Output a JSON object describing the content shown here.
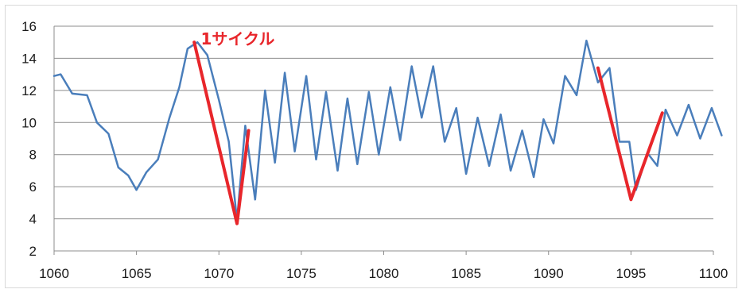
{
  "chart_data": {
    "type": "line",
    "title": "",
    "xlabel": "",
    "ylabel": "",
    "xlim": [
      1060,
      1100
    ],
    "ylim": [
      2,
      16
    ],
    "x_ticks": [
      1060,
      1065,
      1070,
      1075,
      1080,
      1085,
      1090,
      1095,
      1100
    ],
    "y_ticks": [
      2,
      4,
      6,
      8,
      10,
      12,
      14,
      16
    ],
    "grid": "horizontal",
    "legend": "none",
    "series": [
      {
        "color": "#4a7ebb",
        "points": [
          [
            1060.0,
            12.9
          ],
          [
            1060.4,
            13.0
          ],
          [
            1061.1,
            11.8
          ],
          [
            1062.0,
            11.7
          ],
          [
            1062.6,
            10.0
          ],
          [
            1063.3,
            9.3
          ],
          [
            1063.9,
            7.2
          ],
          [
            1064.5,
            6.7
          ],
          [
            1065.0,
            5.8
          ],
          [
            1065.6,
            6.9
          ],
          [
            1066.3,
            7.7
          ],
          [
            1067.0,
            10.3
          ],
          [
            1067.6,
            12.2
          ],
          [
            1068.1,
            14.6
          ],
          [
            1068.7,
            15.0
          ],
          [
            1069.3,
            14.2
          ],
          [
            1070.0,
            11.4
          ],
          [
            1070.6,
            8.8
          ],
          [
            1071.1,
            3.9
          ],
          [
            1071.6,
            9.8
          ],
          [
            1072.2,
            5.2
          ],
          [
            1072.8,
            12.0
          ],
          [
            1073.4,
            7.5
          ],
          [
            1074.0,
            13.1
          ],
          [
            1074.6,
            8.2
          ],
          [
            1075.3,
            12.9
          ],
          [
            1075.9,
            7.7
          ],
          [
            1076.5,
            11.9
          ],
          [
            1077.2,
            7.0
          ],
          [
            1077.8,
            11.5
          ],
          [
            1078.4,
            7.4
          ],
          [
            1079.1,
            11.9
          ],
          [
            1079.7,
            8.0
          ],
          [
            1080.4,
            12.2
          ],
          [
            1081.0,
            8.9
          ],
          [
            1081.7,
            13.5
          ],
          [
            1082.3,
            10.3
          ],
          [
            1083.0,
            13.5
          ],
          [
            1083.7,
            8.8
          ],
          [
            1084.4,
            10.9
          ],
          [
            1085.0,
            6.8
          ],
          [
            1085.7,
            10.3
          ],
          [
            1086.4,
            7.3
          ],
          [
            1087.1,
            10.5
          ],
          [
            1087.7,
            7.0
          ],
          [
            1088.4,
            9.5
          ],
          [
            1089.1,
            6.6
          ],
          [
            1089.7,
            10.2
          ],
          [
            1090.3,
            8.7
          ],
          [
            1091.0,
            12.9
          ],
          [
            1091.7,
            11.7
          ],
          [
            1092.3,
            15.1
          ],
          [
            1093.0,
            12.5
          ],
          [
            1093.7,
            13.4
          ],
          [
            1094.3,
            8.8
          ],
          [
            1094.9,
            8.8
          ],
          [
            1095.3,
            5.8
          ],
          [
            1096.0,
            8.1
          ],
          [
            1096.6,
            7.3
          ],
          [
            1097.1,
            10.8
          ],
          [
            1097.8,
            9.2
          ],
          [
            1098.5,
            11.1
          ],
          [
            1099.2,
            9.0
          ],
          [
            1099.9,
            10.9
          ],
          [
            1100.5,
            9.2
          ]
        ]
      },
      {
        "color": "#e8262b",
        "points": [
          [
            1068.5,
            15.0
          ],
          [
            1071.1,
            3.7
          ],
          [
            1071.8,
            9.5
          ]
        ]
      },
      {
        "color": "#e8262b",
        "points": [
          [
            1093.0,
            13.4
          ],
          [
            1095.0,
            5.2
          ],
          [
            1096.9,
            10.6
          ]
        ]
      }
    ],
    "annotations": [
      {
        "text": "1サイクル",
        "x": 1068.9,
        "y": 15.2,
        "color": "#e8262b"
      }
    ]
  }
}
